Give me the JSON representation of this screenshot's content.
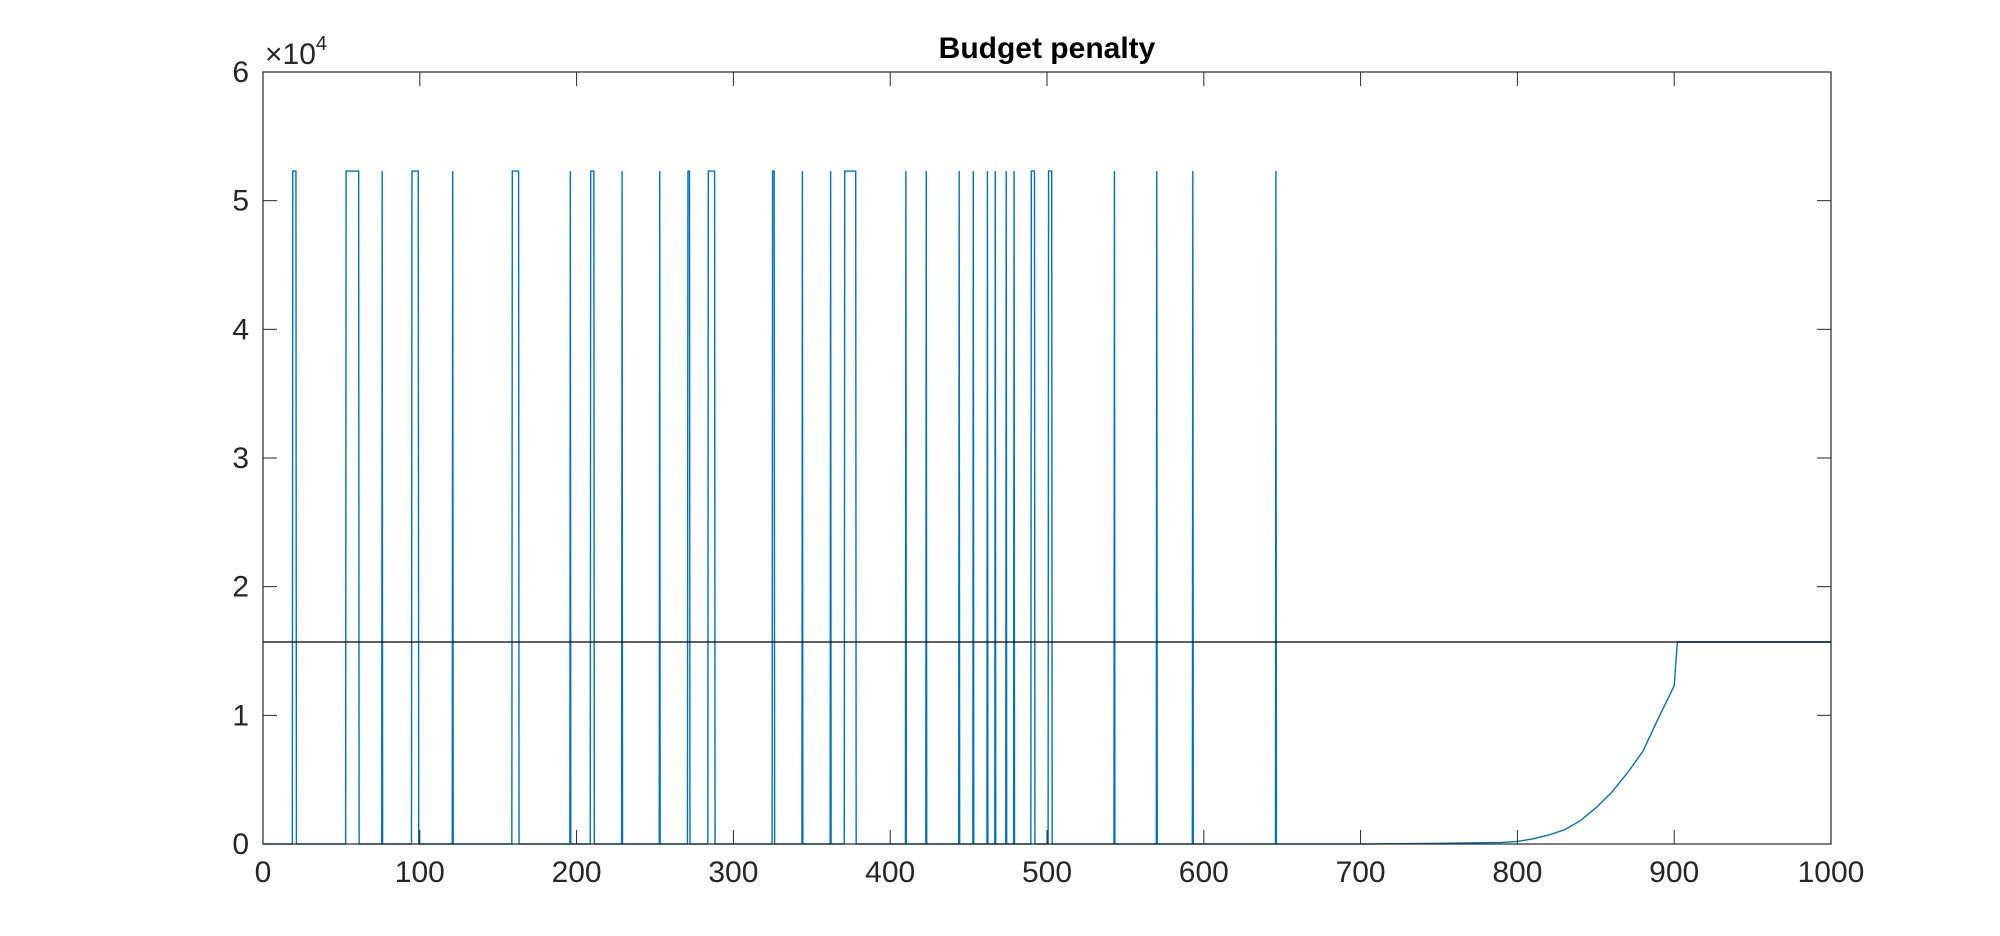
{
  "chart_data": {
    "type": "line",
    "title": "Budget penalty",
    "xlabel": "",
    "ylabel": "",
    "xlim": [
      0,
      1000
    ],
    "ylim": [
      0,
      60000
    ],
    "x_ticks": [
      0,
      100,
      200,
      300,
      400,
      500,
      600,
      700,
      800,
      900,
      1000
    ],
    "y_ticks": [
      0,
      1,
      2,
      3,
      4,
      5,
      6
    ],
    "y_exponent_label": {
      "base": "×10",
      "power": "4"
    },
    "grid": false,
    "box": true,
    "series": [
      {
        "color": "#0072BD",
        "baseline": 0,
        "spike_height": 52300,
        "spikes": [
          [
            19,
            21
          ],
          [
            53,
            61
          ],
          [
            76,
            76
          ],
          [
            95,
            99
          ],
          [
            121,
            121
          ],
          [
            159,
            163
          ],
          [
            196,
            196
          ],
          [
            209,
            211
          ],
          [
            229,
            229
          ],
          [
            253,
            253
          ],
          [
            271,
            272
          ],
          [
            284,
            288
          ],
          [
            325,
            326
          ],
          [
            344,
            344
          ],
          [
            362,
            362
          ],
          [
            371,
            378
          ],
          [
            410,
            410
          ],
          [
            423,
            423
          ],
          [
            444,
            444
          ],
          [
            453,
            453
          ],
          [
            462,
            462
          ],
          [
            467,
            467
          ],
          [
            474,
            474
          ],
          [
            479,
            479
          ],
          [
            490,
            492
          ],
          [
            501,
            503
          ],
          [
            543,
            543
          ],
          [
            570,
            570
          ],
          [
            593,
            593
          ],
          [
            646,
            646
          ]
        ],
        "tail_curve": [
          [
            645,
            0
          ],
          [
            700,
            0
          ],
          [
            750,
            50
          ],
          [
            790,
            120
          ],
          [
            800,
            200
          ],
          [
            810,
            400
          ],
          [
            820,
            700
          ],
          [
            830,
            1100
          ],
          [
            840,
            1800
          ],
          [
            850,
            2800
          ],
          [
            860,
            4000
          ],
          [
            870,
            5500
          ],
          [
            880,
            7200
          ],
          [
            890,
            9800
          ],
          [
            900,
            12300
          ],
          [
            902,
            15700
          ],
          [
            1000,
            15700
          ]
        ]
      },
      {
        "color": "#000000",
        "constant": 15700
      }
    ]
  }
}
